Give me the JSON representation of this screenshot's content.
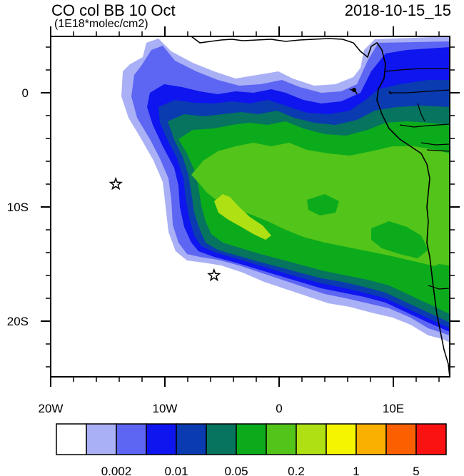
{
  "header": {
    "title": "CO col BB 10 Oct",
    "units": "(1E18*molec/cm2)",
    "timestamp": "2018-10-15_15"
  },
  "axes": {
    "x_labels": [
      "20W",
      "10W",
      "0",
      "10E"
    ],
    "y_labels": [
      "0",
      "10S",
      "20S"
    ]
  },
  "colorbar": {
    "colors": [
      "#ffffff",
      "#aab0f5",
      "#5d66f2",
      "#0e15ef",
      "#0a3bb0",
      "#06745e",
      "#0cab1c",
      "#53c41a",
      "#aee014",
      "#f5f500",
      "#f9b000",
      "#fa6000",
      "#fa1212"
    ],
    "labels": [
      "0.002",
      "0.01",
      "0.05",
      "0.2",
      "1",
      "5"
    ]
  },
  "markers": [
    {
      "name": "station-star-north",
      "lon": -14.3,
      "lat": -8.0
    },
    {
      "name": "station-star-south",
      "lon": -5.7,
      "lat": -16.0
    }
  ]
}
